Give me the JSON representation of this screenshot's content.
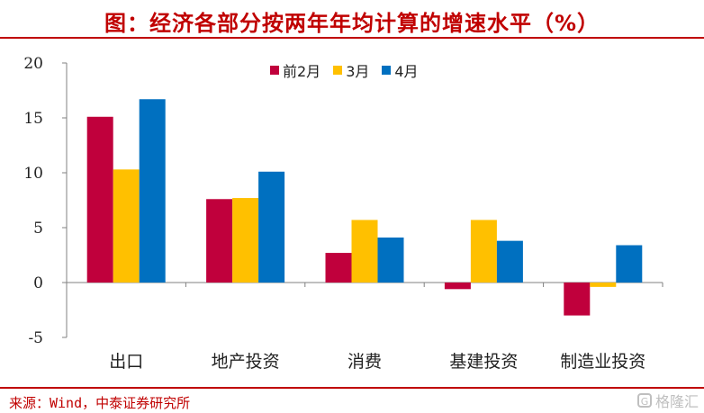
{
  "header": {
    "title": "图：经济各部分按两年年均计算的增速水平（%）"
  },
  "footer": {
    "source": "来源：Wind，中泰证券研究所",
    "watermark": "格隆汇"
  },
  "colors": {
    "title": "#c00000",
    "s1": "#c0003c",
    "s2": "#ffc000",
    "s3": "#0070c0"
  },
  "chart_data": {
    "type": "bar",
    "title": "图：经济各部分按两年年均计算的增速水平（%）",
    "categories": [
      "出口",
      "地产投资",
      "消费",
      "基建投资",
      "制造业投资"
    ],
    "series": [
      {
        "name": "前2月",
        "values": [
          15.1,
          7.6,
          2.7,
          -0.6,
          -3.0
        ]
      },
      {
        "name": "3月",
        "values": [
          10.3,
          7.7,
          5.7,
          5.7,
          -0.4
        ]
      },
      {
        "name": "4月",
        "values": [
          16.7,
          10.1,
          4.1,
          3.8,
          3.4
        ]
      }
    ],
    "ylim": [
      -5,
      20
    ],
    "yticks": [
      -5,
      0,
      5,
      10,
      15,
      20
    ],
    "xlabel": "",
    "ylabel": "",
    "legend": "top-center",
    "grid": false
  }
}
